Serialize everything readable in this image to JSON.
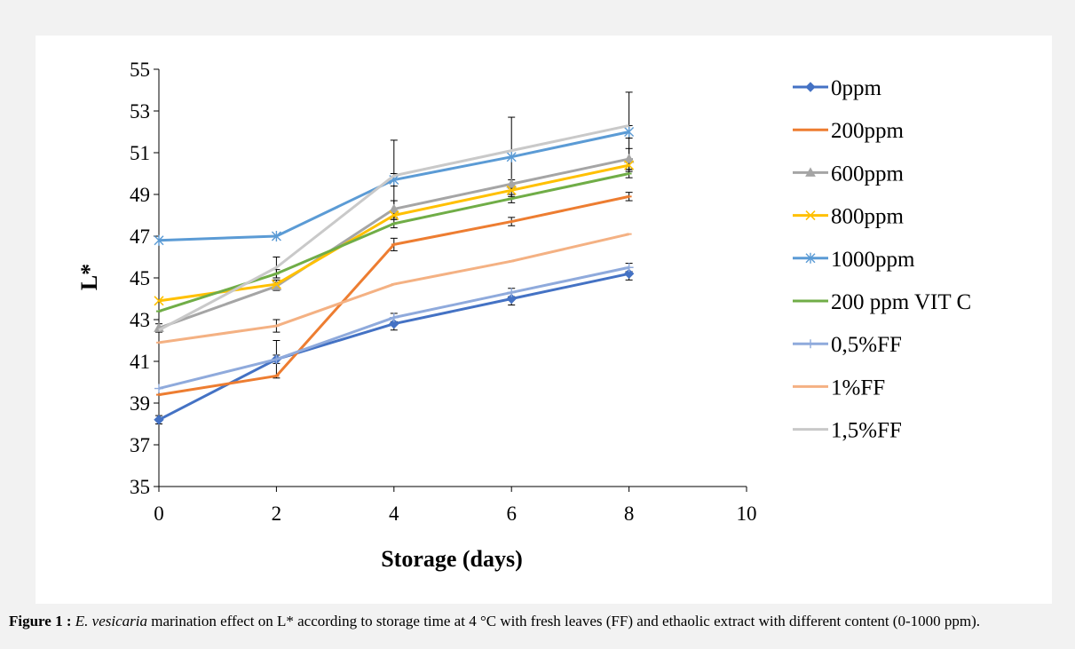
{
  "caption": {
    "label": "Figure 1 :",
    "species": "E. vesicaria",
    "text": " marination effect on L* according to storage time at 4 °C with fresh leaves (FF) and ethaolic extract with different content (0-1000 ppm)."
  },
  "chart_data": {
    "type": "line",
    "title": "",
    "xlabel": "Storage (days)",
    "ylabel": "L*",
    "xlim": [
      0,
      10
    ],
    "ylim": [
      35,
      55
    ],
    "xticks": [
      0,
      2,
      4,
      6,
      8,
      10
    ],
    "yticks": [
      35,
      37,
      39,
      41,
      43,
      45,
      47,
      49,
      51,
      53,
      55
    ],
    "grid": false,
    "legend_position": "right",
    "x": [
      0,
      2,
      4,
      6,
      8
    ],
    "series": [
      {
        "name": "0ppm",
        "color": "#4472c4",
        "marker": "diamond",
        "values": [
          38.2,
          41.1,
          42.8,
          44.0,
          45.2
        ],
        "errors": [
          0.2,
          0.2,
          0.3,
          0.3,
          0.3
        ]
      },
      {
        "name": "200ppm",
        "color": "#ed7d31",
        "marker": "dash",
        "values": [
          39.4,
          40.3,
          46.6,
          47.7,
          48.9
        ],
        "errors": [
          0.1,
          0.1,
          0.3,
          0.2,
          0.2
        ]
      },
      {
        "name": "600ppm",
        "color": "#a5a5a5",
        "marker": "triangle",
        "values": [
          42.6,
          44.6,
          48.3,
          49.5,
          50.7
        ],
        "errors": [
          0.2,
          0.2,
          0.4,
          0.2,
          0.5
        ]
      },
      {
        "name": "800ppm",
        "color": "#ffc000",
        "marker": "x",
        "values": [
          43.9,
          44.7,
          48.0,
          49.2,
          50.4
        ],
        "errors": [
          0.1,
          0.2,
          0.2,
          0.3,
          0.3
        ]
      },
      {
        "name": "1000ppm",
        "color": "#5b9bd5",
        "marker": "star",
        "values": [
          46.8,
          47.0,
          49.7,
          50.8,
          52.0
        ],
        "errors": [
          0.1,
          0.1,
          0.3,
          0.1,
          0.3
        ]
      },
      {
        "name": "200 ppm VIT C",
        "color": "#70ad47",
        "marker": "dash",
        "values": [
          43.4,
          45.2,
          47.6,
          48.8,
          50.0
        ],
        "errors": [
          0.1,
          0.2,
          0.2,
          0.2,
          0.2
        ]
      },
      {
        "name": "0,5%FF",
        "color": "#8faadc",
        "marker": "plus",
        "values": [
          39.7,
          41.1,
          43.1,
          44.3,
          45.5
        ],
        "errors": [
          0.1,
          0.9,
          0.2,
          0.2,
          0.2
        ]
      },
      {
        "name": "1%FF",
        "color": "#f4b183",
        "marker": "dash",
        "values": [
          41.9,
          42.7,
          44.7,
          45.8,
          47.1
        ],
        "errors": [
          0.1,
          0.3,
          0.1,
          0.1,
          0.1
        ]
      },
      {
        "name": "1,5%FF",
        "color": "#c9c9c9",
        "marker": "none",
        "values": [
          42.5,
          45.5,
          49.9,
          51.1,
          52.3
        ],
        "errors": [
          0.1,
          0.5,
          1.7,
          1.6,
          1.6
        ]
      }
    ]
  }
}
